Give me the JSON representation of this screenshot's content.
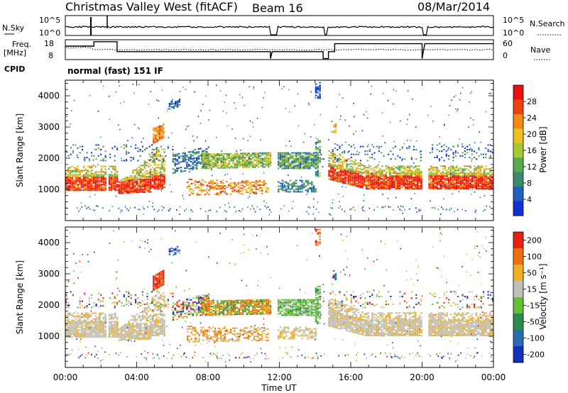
{
  "header": {
    "title": "Christmas Valley West (fitACF)",
    "beam": "Beam 16",
    "date": "08/Mar/2014"
  },
  "sky_panel": {
    "left_label": "N.Sky",
    "right_label": "N.Search",
    "left_ticks": [
      "10^5",
      "10^0"
    ],
    "right_ticks": [
      "10^5",
      "10^0"
    ]
  },
  "freq_panel": {
    "left_label_1": "Freq.",
    "left_label_2": "[MHz]",
    "right_label": "Nave",
    "left_ticks": [
      "18",
      "8"
    ],
    "right_ticks": [
      "60",
      "0"
    ]
  },
  "cpid_panel": {
    "label": "CPID",
    "mode": "normal (fast) 151 IF"
  },
  "x_axis": {
    "label": "Time UT",
    "ticks": [
      "00:00",
      "04:00",
      "08:00",
      "12:00",
      "16:00",
      "20:00",
      "00:00"
    ]
  },
  "colors": {
    "power_scale": [
      "#1030d8",
      "#2060c0",
      "#3a8a70",
      "#5aa850",
      "#a8c830",
      "#f0c020",
      "#f08a10",
      "#f04010",
      "#e81010"
    ],
    "velocity_scale": [
      "#1030c0",
      "#2a6ab0",
      "#2a8a50",
      "#60c030",
      "#c0c0b8",
      "#f0b020",
      "#f07010",
      "#e82010"
    ]
  },
  "chart_data": [
    {
      "type": "heatmap",
      "title": "Power",
      "xlabel": "Time UT",
      "ylabel": "Slant Range [km]",
      "xlim": [
        "00:00",
        "24:00"
      ],
      "ylim": [
        0,
        4500
      ],
      "yticks": [
        1000,
        2000,
        3000,
        4000
      ],
      "colorbar": {
        "label": "Power [dB]",
        "ticks": [
          "28",
          "24",
          "20",
          "16",
          "12",
          "8",
          "4"
        ]
      }
    },
    {
      "type": "heatmap",
      "title": "Velocity",
      "xlabel": "Time UT",
      "ylabel": "Slant Range [km]",
      "xlim": [
        "00:00",
        "24:00"
      ],
      "ylim": [
        0,
        4500
      ],
      "yticks": [
        1000,
        2000,
        3000,
        4000
      ],
      "colorbar": {
        "label": "Velocity [m s⁻¹]",
        "ticks": [
          "200",
          "100",
          "50",
          "15",
          "-15",
          "-50",
          "-100",
          "-200"
        ]
      }
    }
  ]
}
